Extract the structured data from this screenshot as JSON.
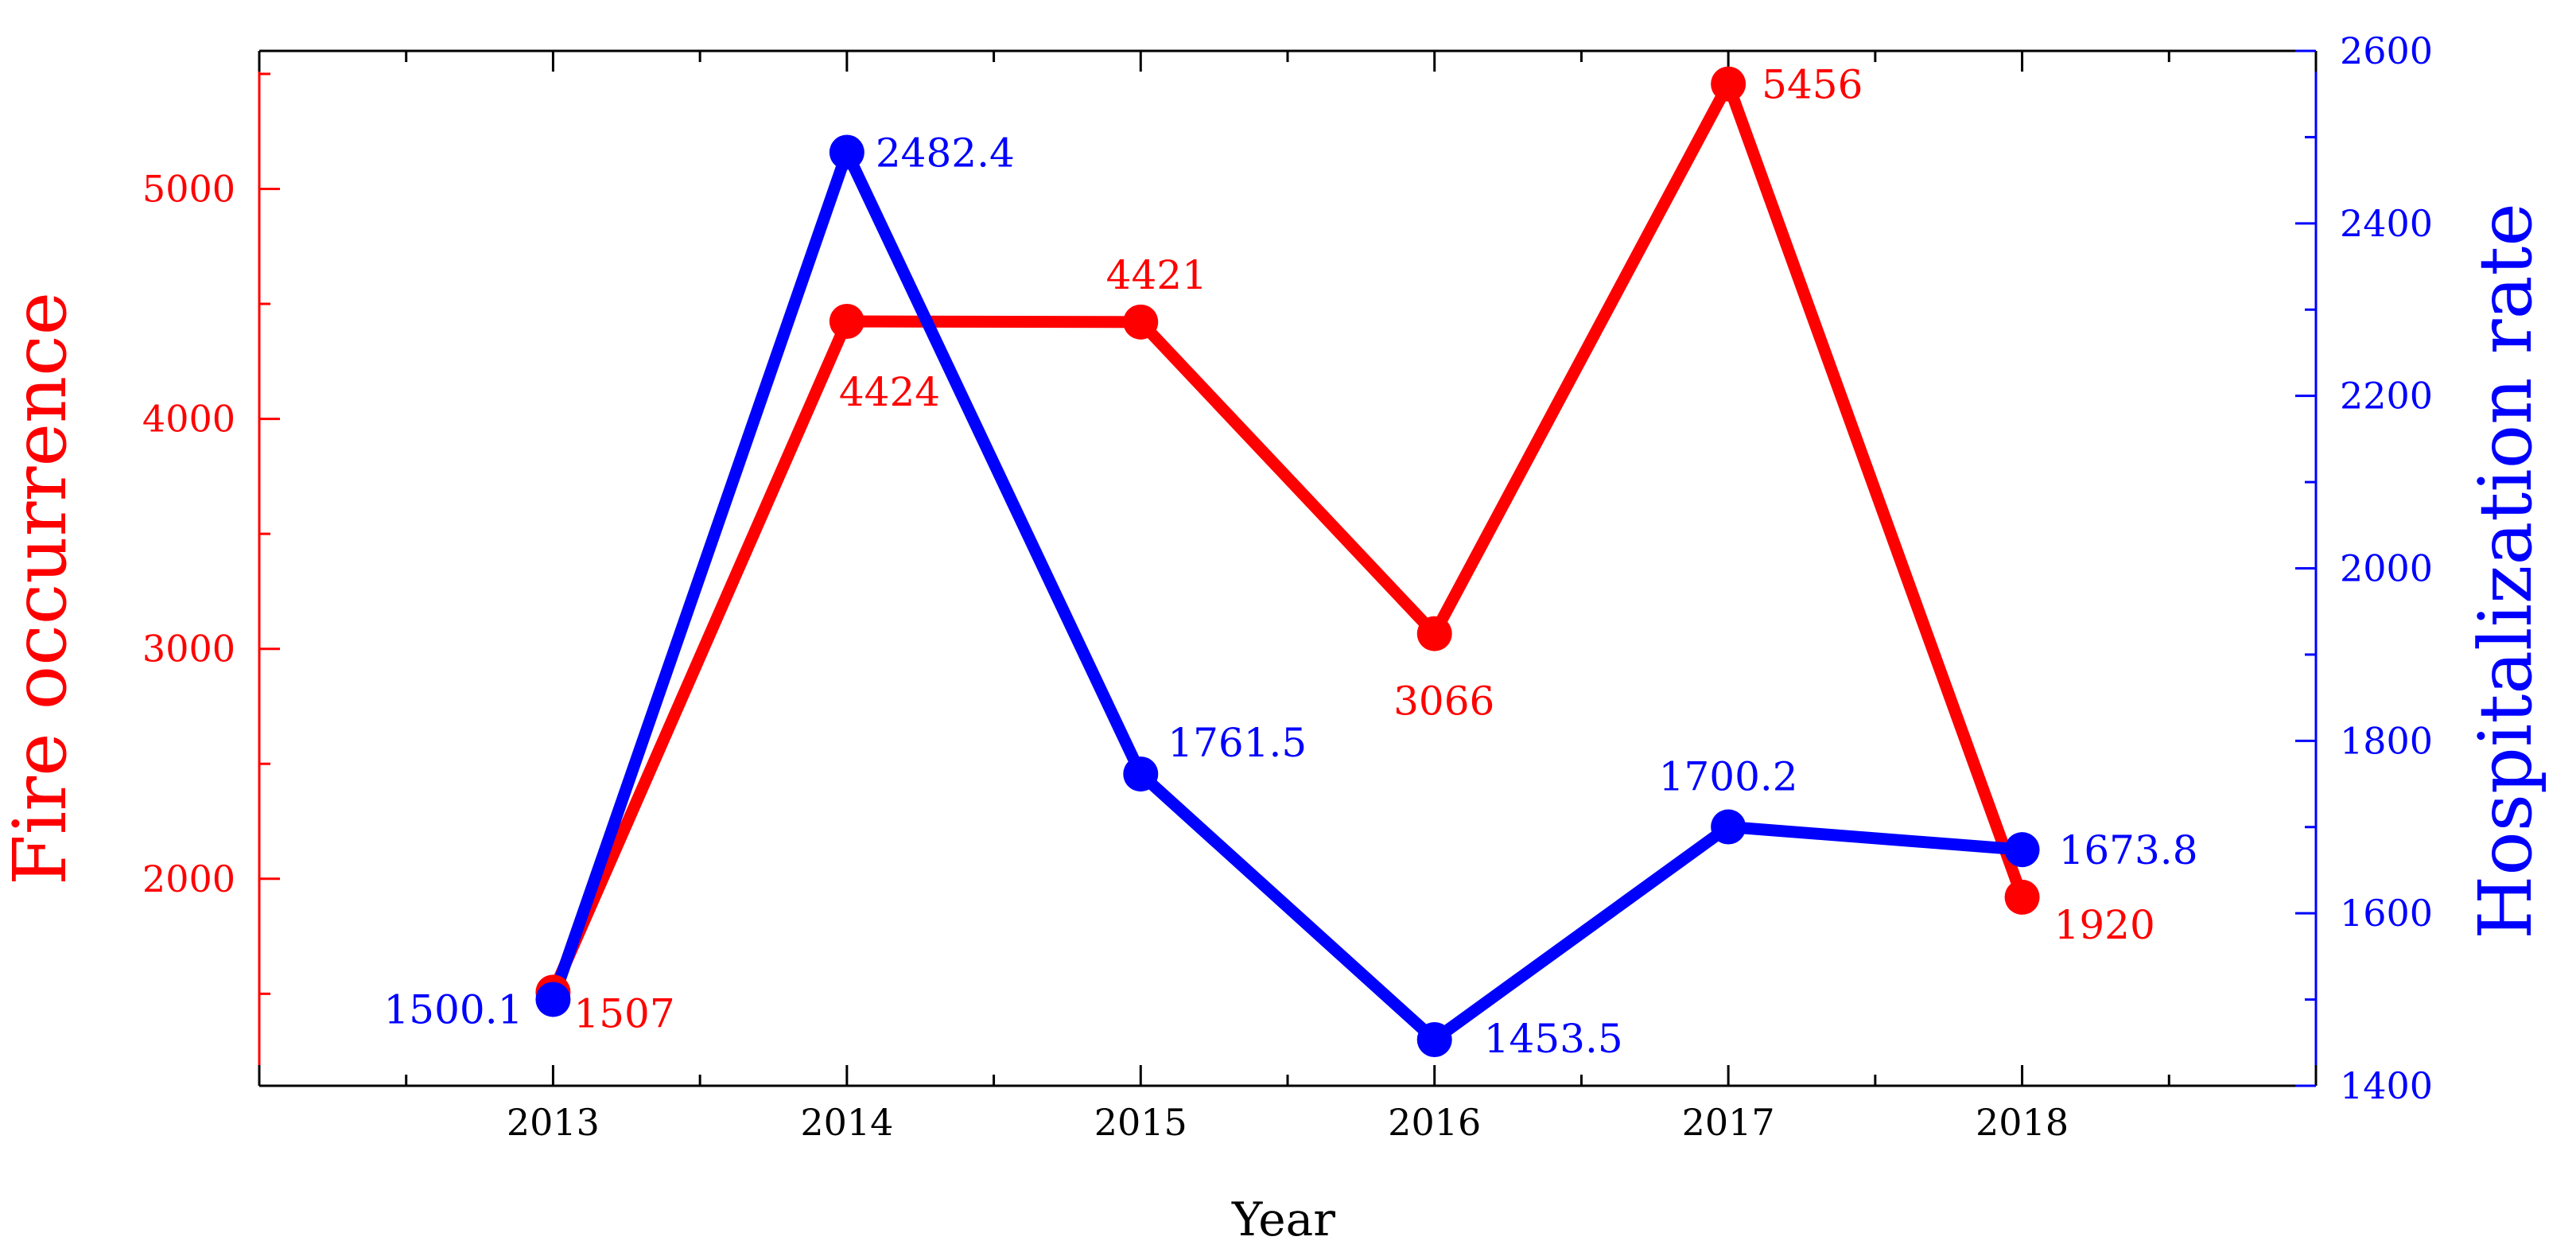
{
  "chart_data": {
    "type": "line",
    "x": [
      2013,
      2014,
      2015,
      2016,
      2017,
      2018
    ],
    "xlabel": "Year",
    "xlim": [
      2012,
      2019
    ],
    "xticks": [
      "2013",
      "2014",
      "2015",
      "2016",
      "2017",
      "2018"
    ],
    "grid": false,
    "series": [
      {
        "axis": "left",
        "color": "#ff0000",
        "values": [
          1507,
          4424,
          4421,
          3066,
          5456,
          1920
        ],
        "labels": [
          "1507",
          "4424",
          "4421",
          "3066",
          "5456",
          "1920"
        ]
      },
      {
        "axis": "right",
        "color": "#0000ff",
        "values": [
          1500.1,
          2482.4,
          1761.5,
          1453.5,
          1700.2,
          1673.8
        ],
        "labels": [
          "1500.1",
          "2482.4",
          "1761.5",
          "1453.5",
          "1700.2",
          "1673.8"
        ]
      }
    ],
    "y_left": {
      "label": "Fire occurrence",
      "color": "#ff0000",
      "lim": [
        1100,
        5600
      ],
      "ticks": [
        2000,
        3000,
        4000,
        5000
      ]
    },
    "y_right": {
      "label": "Hospitalization rate",
      "color": "#0000ff",
      "lim": [
        1400,
        2600
      ],
      "ticks": [
        1400,
        1600,
        1800,
        2000,
        2200,
        2400,
        2600
      ]
    }
  }
}
